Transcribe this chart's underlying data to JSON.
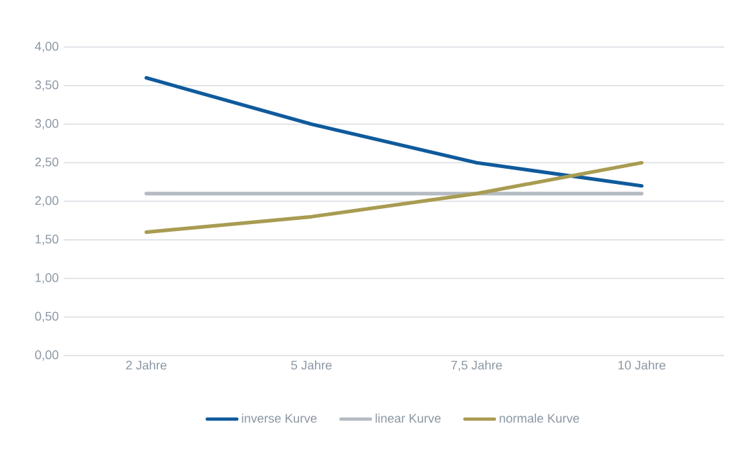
{
  "chart_data": {
    "type": "line",
    "categories": [
      "2 Jahre",
      "5 Jahre",
      "7,5 Jahre",
      "10 Jahre"
    ],
    "series": [
      {
        "name": "inverse Kurve",
        "color": "#0f5a9c",
        "values": [
          3.6,
          3.0,
          2.5,
          2.2
        ]
      },
      {
        "name": "linear Kurve",
        "color": "#b4bbc2",
        "values": [
          2.1,
          2.1,
          2.1,
          2.1
        ]
      },
      {
        "name": "normale Kurve",
        "color": "#a89c52",
        "values": [
          1.6,
          1.8,
          2.1,
          2.5
        ]
      }
    ],
    "ylim": [
      0,
      4
    ],
    "yticks": [
      {
        "value": 0,
        "label": "0,00"
      },
      {
        "value": 0.5,
        "label": "0,50"
      },
      {
        "value": 1,
        "label": "1,00"
      },
      {
        "value": 1.5,
        "label": "1,50"
      },
      {
        "value": 2,
        "label": "2,00"
      },
      {
        "value": 2.5,
        "label": "2,50"
      },
      {
        "value": 3,
        "label": "3,00"
      },
      {
        "value": 3.5,
        "label": "3,50"
      },
      {
        "value": 4,
        "label": "4,00"
      }
    ],
    "grid": "y",
    "legend": "bottom",
    "marker": "none",
    "line_style": "solid"
  }
}
